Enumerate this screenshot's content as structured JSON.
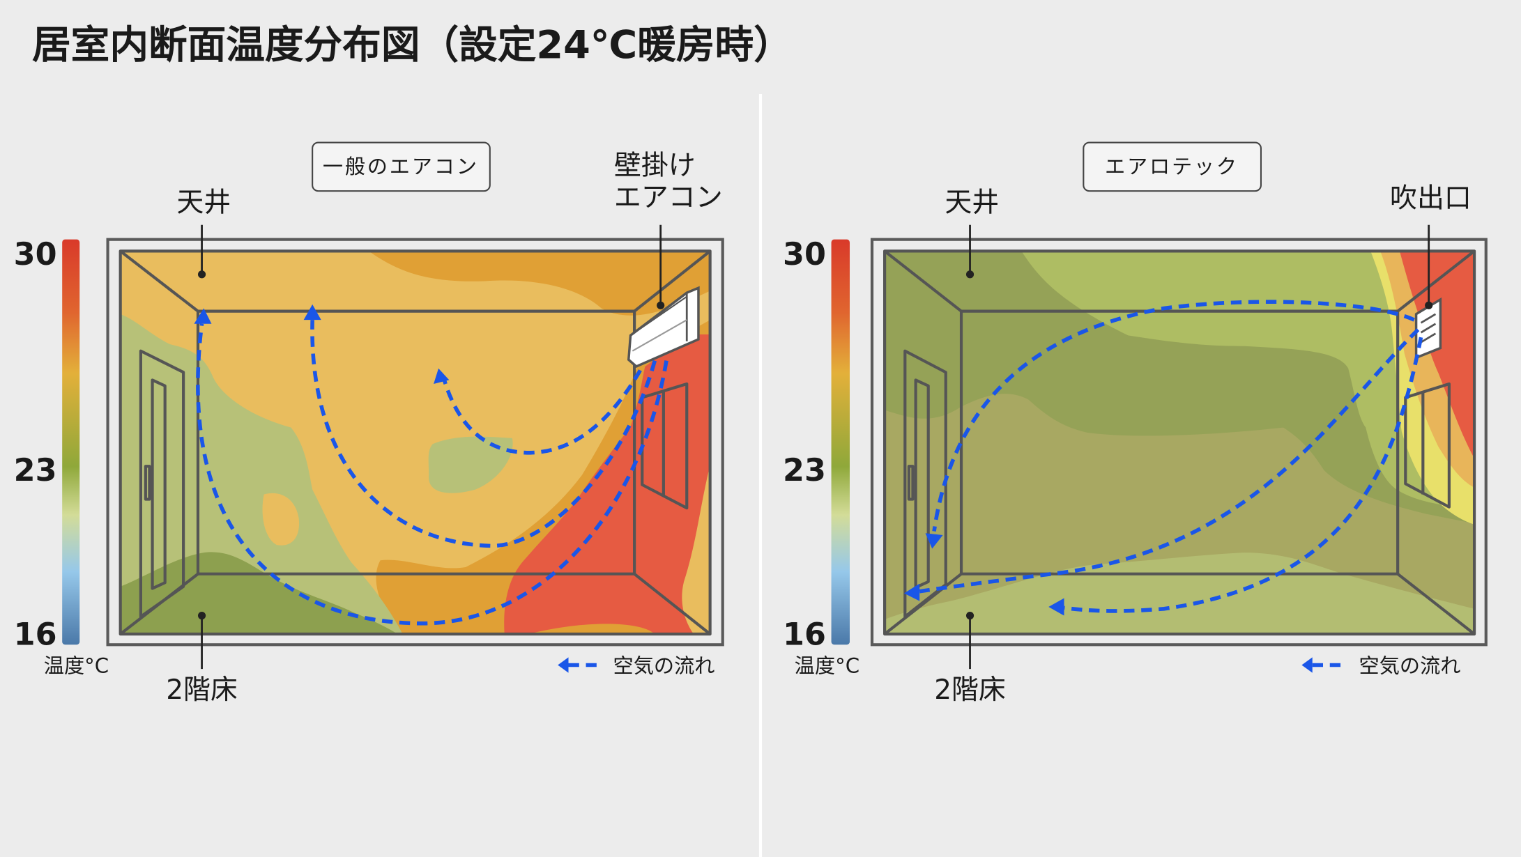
{
  "title": "居室内断面温度分布図（設定24℃暖房時）",
  "colors": {
    "background": "#ececec",
    "flow_arrow": "#1a56e8",
    "scale_top": "#d93a2a",
    "scale_mid": "#8fa83a",
    "scale_bottom": "#4a78a8"
  },
  "scale": {
    "max": "30",
    "mid": "23",
    "min": "16",
    "unit_label": "温度°C"
  },
  "legend": {
    "air_flow": "空気の流れ",
    "icon": "dashed-arrow-left-icon"
  },
  "panels": [
    {
      "box_label": "一般のエアコン",
      "ceiling_label": "天井",
      "floor_label": "2階床",
      "source_label_line1": "壁掛け",
      "source_label_line2": "エアコン",
      "source_icon": "wall-air-conditioner-icon"
    },
    {
      "box_label": "エアロテック",
      "ceiling_label": "天井",
      "floor_label": "2階床",
      "source_label_line1": "吹出口",
      "source_icon": "air-vent-icon"
    }
  ]
}
